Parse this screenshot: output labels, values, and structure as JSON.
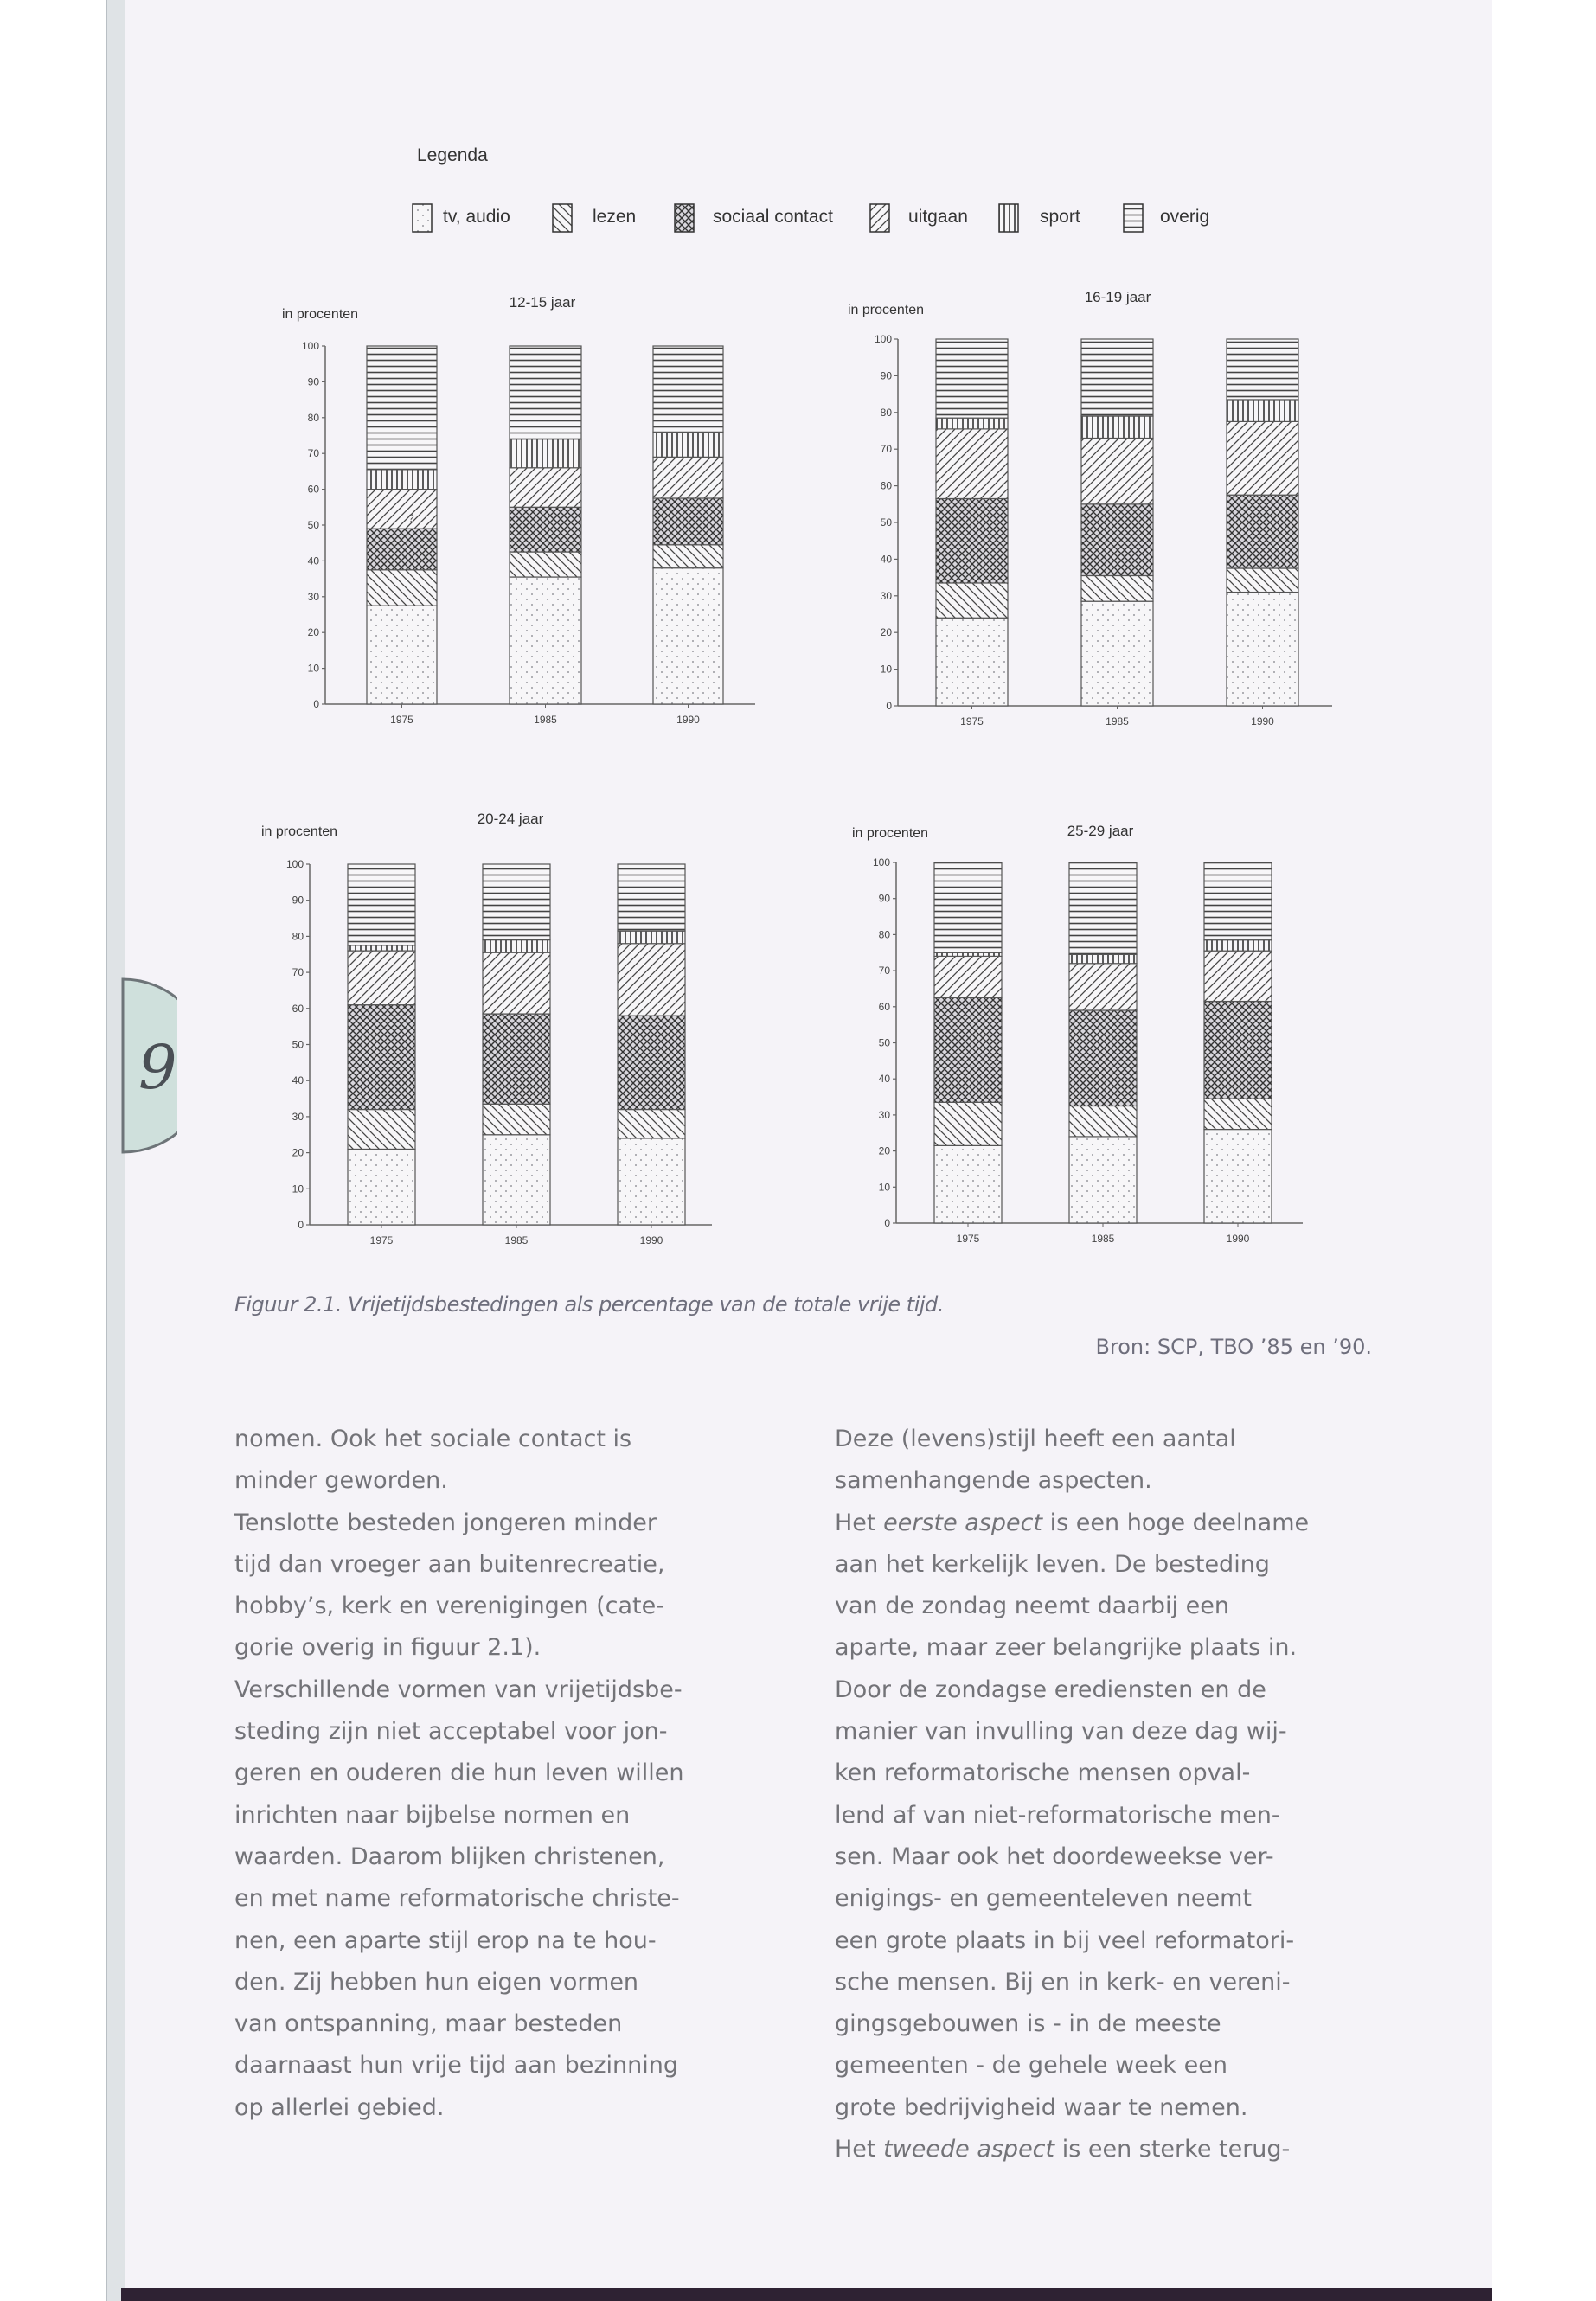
{
  "figure": {
    "legend": {
      "title": "Legenda",
      "items": [
        {
          "label": "tv, audio",
          "pattern": "dots"
        },
        {
          "label": "lezen",
          "pattern": "diagonal-back"
        },
        {
          "label": "sociaal contact",
          "pattern": "crosshatch"
        },
        {
          "label": "uitgaan",
          "pattern": "diagonal-forward"
        },
        {
          "label": "sport",
          "pattern": "vertical"
        },
        {
          "label": "overig",
          "pattern": "horizontal"
        }
      ]
    },
    "caption": "Figuur 2.1. Vrijetijdsbestedingen als percentage van de totale vrije tijd.",
    "source": "Bron: SCP, TBO ’85 en ’90."
  },
  "chart_data": [
    {
      "type": "bar",
      "stacked": true,
      "title": "12-15 jaar",
      "ylabel": "in procenten",
      "xlabel": "",
      "categories": [
        "1975",
        "1985",
        "1990"
      ],
      "ylim": [
        0,
        100
      ],
      "yticks": [
        "0",
        "10",
        "20",
        "30",
        "40",
        "50",
        "60",
        "70",
        "80",
        "90",
        "100"
      ],
      "series": [
        {
          "name": "tv, audio",
          "values": [
            27.5,
            35.5,
            38
          ]
        },
        {
          "name": "lezen",
          "values": [
            10,
            7,
            6.5
          ]
        },
        {
          "name": "sociaal contact",
          "values": [
            11.5,
            12.5,
            13
          ]
        },
        {
          "name": "uitgaan",
          "values": [
            11,
            11,
            11.5
          ]
        },
        {
          "name": "sport",
          "values": [
            5.5,
            8,
            7
          ]
        },
        {
          "name": "overig",
          "values": [
            34.5,
            26,
            24
          ]
        }
      ],
      "annotation": "?"
    },
    {
      "type": "bar",
      "stacked": true,
      "title": "16-19 jaar",
      "ylabel": "in procenten",
      "xlabel": "",
      "categories": [
        "1975",
        "1985",
        "1990"
      ],
      "ylim": [
        0,
        100
      ],
      "yticks": [
        "0",
        "10",
        "20",
        "30",
        "40",
        "50",
        "60",
        "70",
        "80",
        "90",
        "100"
      ],
      "series": [
        {
          "name": "tv, audio",
          "values": [
            24,
            28.5,
            31
          ]
        },
        {
          "name": "lezen",
          "values": [
            9.5,
            7,
            6.5
          ]
        },
        {
          "name": "sociaal contact",
          "values": [
            23,
            19.5,
            20
          ]
        },
        {
          "name": "uitgaan",
          "values": [
            19,
            18,
            20
          ]
        },
        {
          "name": "sport",
          "values": [
            3,
            6,
            6
          ]
        },
        {
          "name": "overig",
          "values": [
            21.5,
            21,
            16.5
          ]
        }
      ]
    },
    {
      "type": "bar",
      "stacked": true,
      "title": "20-24 jaar",
      "ylabel": "in procenten",
      "xlabel": "",
      "categories": [
        "1975",
        "1985",
        "1990"
      ],
      "ylim": [
        0,
        100
      ],
      "yticks": [
        "0",
        "10",
        "20",
        "30",
        "40",
        "50",
        "60",
        "70",
        "80",
        "90",
        "100"
      ],
      "series": [
        {
          "name": "tv, audio",
          "values": [
            21,
            25,
            24
          ]
        },
        {
          "name": "lezen",
          "values": [
            11,
            8.5,
            8
          ]
        },
        {
          "name": "sociaal contact",
          "values": [
            29,
            25,
            26
          ]
        },
        {
          "name": "uitgaan",
          "values": [
            15,
            17,
            20
          ]
        },
        {
          "name": "sport",
          "values": [
            1.5,
            3.5,
            3.5
          ]
        },
        {
          "name": "overig",
          "values": [
            22.5,
            21,
            18.5
          ]
        }
      ]
    },
    {
      "type": "bar",
      "stacked": true,
      "title": "25-29 jaar",
      "ylabel": "in procenten",
      "xlabel": "",
      "categories": [
        "1975",
        "1985",
        "1990"
      ],
      "ylim": [
        0,
        100
      ],
      "yticks": [
        "0",
        "10",
        "20",
        "30",
        "40",
        "50",
        "60",
        "70",
        "80",
        "90",
        "100"
      ],
      "series": [
        {
          "name": "tv, audio",
          "values": [
            21.5,
            24,
            26
          ]
        },
        {
          "name": "lezen",
          "values": [
            12,
            8.5,
            8.5
          ]
        },
        {
          "name": "sociaal contact",
          "values": [
            29,
            26.5,
            27
          ]
        },
        {
          "name": "uitgaan",
          "values": [
            11.5,
            13,
            14
          ]
        },
        {
          "name": "sport",
          "values": [
            1,
            2.5,
            3
          ]
        },
        {
          "name": "overig",
          "values": [
            25,
            25.5,
            21.5
          ]
        }
      ]
    }
  ],
  "body": {
    "left_column": [
      "nomen. Ook het sociale contact is",
      "minder geworden.",
      "Tenslotte besteden jongeren minder",
      "tijd dan vroeger aan buitenrecreatie,",
      "hobby’s, kerk en verenigingen (cate-",
      "gorie overig in figuur 2.1).",
      "Verschillende vormen van vrijetijdsbe-",
      "steding zijn  niet acceptabel voor jon-",
      "geren en ouderen die hun leven willen",
      "inrichten naar bijbelse normen en",
      "waarden. Daarom blijken christenen,",
      "en met name reformatorische christe-",
      "nen, een aparte stijl erop na te hou-",
      "den. Zij hebben hun eigen vormen",
      "van ontspanning, maar besteden",
      "daarnaast hun vrije tijd aan bezinning",
      "op allerlei gebied."
    ],
    "right_column": [
      {
        "pre": "Deze (levens)stijl heeft een aantal"
      },
      {
        "pre": "samenhangende aspecten."
      },
      {
        "pre": "Het ",
        "em": "eerste aspect",
        "post": " is een hoge deelname"
      },
      {
        "pre": "aan het kerkelijk leven. De besteding"
      },
      {
        "pre": "van de zondag neemt daarbij een"
      },
      {
        "pre": "aparte, maar zeer belangrijke plaats in."
      },
      {
        "pre": "Door de zondagse erediensten en de"
      },
      {
        "pre": "manier van invulling van deze dag wij-"
      },
      {
        "pre": "ken reformatorische mensen opval-"
      },
      {
        "pre": "lend af van niet-reformatorische men-"
      },
      {
        "pre": "sen. Maar ook het doordeweekse ver-"
      },
      {
        "pre": "enigings- en gemeenteleven neemt"
      },
      {
        "pre": "een grote plaats in bij veel reformatori-"
      },
      {
        "pre": "sche mensen. Bij en in kerk- en vereni-"
      },
      {
        "pre": "gingsgebouwen is - in de meeste"
      },
      {
        "pre": "gemeenten - de gehele week een"
      },
      {
        "pre": "grote bedrijvigheid waar te nemen."
      },
      {
        "pre": "Het ",
        "em": "tweede aspect",
        "post": " is een sterke terug-"
      }
    ]
  },
  "margin_tab": {
    "number": "9"
  }
}
